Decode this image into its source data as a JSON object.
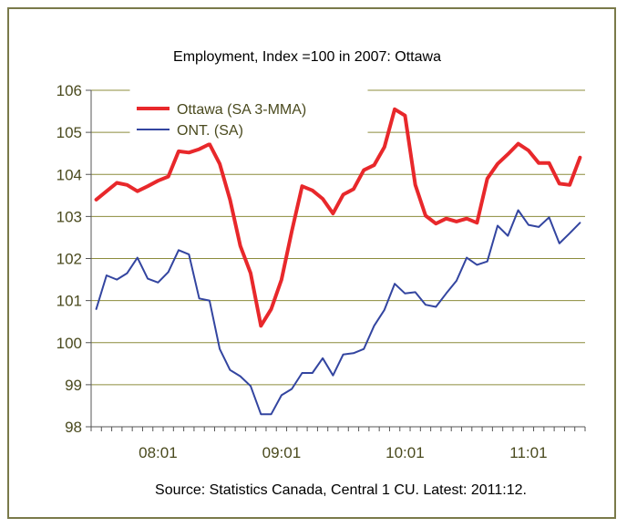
{
  "chart_data": {
    "type": "line",
    "title": "Employment, Index =100 in 2007: Ottawa",
    "source": "Source: Statistics Canada, Central 1 CU. Latest: 2011:12.",
    "xlabel": "",
    "ylabel": "",
    "ylim": [
      98,
      106
    ],
    "yticks": [
      98,
      99,
      100,
      101,
      102,
      103,
      104,
      105,
      106
    ],
    "xtick_labels": [
      "08:01",
      "09:01",
      "10:01",
      "11:01"
    ],
    "xtick_indices": [
      6,
      18,
      30,
      42
    ],
    "n_points": 48,
    "legend_position": "top-left",
    "grid": "horizontal",
    "series": [
      {
        "name": "Ottawa (SA 3-MMA)",
        "color": "#e8282b",
        "values": [
          103.4,
          103.6,
          103.8,
          103.75,
          103.6,
          103.72,
          103.85,
          103.95,
          104.55,
          104.52,
          104.6,
          104.72,
          104.25,
          103.4,
          102.3,
          101.65,
          100.4,
          100.8,
          101.5,
          102.65,
          103.72,
          103.62,
          103.42,
          103.07,
          103.52,
          103.65,
          104.1,
          104.22,
          104.65,
          105.55,
          105.4,
          103.75,
          103.02,
          102.83,
          102.95,
          102.88,
          102.95,
          102.85,
          103.9,
          104.25,
          104.48,
          104.73,
          104.57,
          104.27,
          104.27,
          103.78,
          103.75,
          104.4
        ]
      },
      {
        "name": "ONT. (SA)",
        "color": "#3345a0",
        "values": [
          100.8,
          101.6,
          101.5,
          101.65,
          102.02,
          101.52,
          101.43,
          101.68,
          102.2,
          102.1,
          101.05,
          101.0,
          99.85,
          99.35,
          99.2,
          98.97,
          98.3,
          98.3,
          98.75,
          98.9,
          99.28,
          99.28,
          99.63,
          99.22,
          99.72,
          99.75,
          99.85,
          100.4,
          100.78,
          101.4,
          101.17,
          101.2,
          100.9,
          100.85,
          101.17,
          101.47,
          102.02,
          101.85,
          101.93,
          102.78,
          102.54,
          103.15,
          102.8,
          102.75,
          102.98,
          102.36,
          102.6,
          102.85
        ]
      }
    ]
  }
}
